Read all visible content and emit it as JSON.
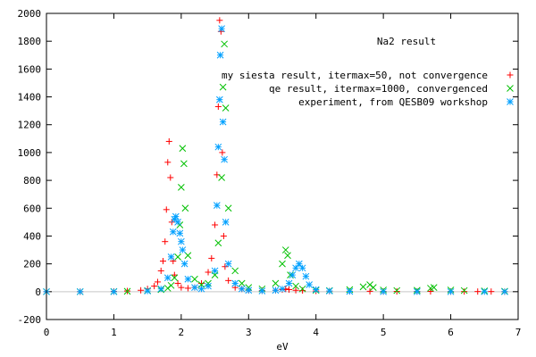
{
  "chart_data": {
    "type": "scatter",
    "title": "Na2 result",
    "xlabel": "eV",
    "ylabel": "",
    "xlim": [
      0,
      7
    ],
    "ylim": [
      -200,
      2000
    ],
    "grid": false,
    "legend_position": "top-right",
    "x_ticks": [
      "0",
      "1",
      "2",
      "3",
      "4",
      "5",
      "6",
      "7"
    ],
    "y_ticks": [
      "-200",
      "0",
      "200",
      "400",
      "600",
      "800",
      "1000",
      "1200",
      "1400",
      "1600",
      "1800",
      "2000"
    ],
    "series": [
      {
        "name": "my siesta result, itermax=50, not convergence",
        "marker": "plus",
        "color": "#ff0000",
        "x": [
          0.0,
          0.5,
          1.0,
          1.2,
          1.4,
          1.5,
          1.6,
          1.65,
          1.7,
          1.73,
          1.76,
          1.78,
          1.8,
          1.82,
          1.84,
          1.86,
          1.88,
          1.9,
          1.95,
          2.0,
          2.1,
          2.2,
          2.3,
          2.4,
          2.45,
          2.5,
          2.53,
          2.55,
          2.57,
          2.59,
          2.61,
          2.63,
          2.65,
          2.7,
          2.8,
          2.9,
          3.0,
          3.2,
          3.4,
          3.5,
          3.55,
          3.6,
          3.7,
          3.8,
          4.0,
          4.2,
          4.5,
          4.8,
          5.0,
          5.2,
          5.5,
          5.7,
          6.0,
          6.2,
          6.4,
          6.6,
          6.8
        ],
        "y": [
          0,
          0,
          2,
          5,
          10,
          20,
          40,
          70,
          150,
          220,
          360,
          590,
          930,
          1080,
          820,
          500,
          220,
          120,
          60,
          30,
          25,
          30,
          60,
          140,
          240,
          480,
          840,
          1330,
          1950,
          1870,
          1000,
          400,
          180,
          80,
          30,
          20,
          10,
          8,
          10,
          15,
          20,
          15,
          10,
          8,
          5,
          4,
          3,
          3,
          2,
          2,
          2,
          2,
          1,
          1,
          1,
          1,
          0
        ]
      },
      {
        "name": "qe result, itermax=1000, convergenced",
        "marker": "cross",
        "color": "#00c000",
        "x": [
          0.0,
          0.5,
          1.0,
          1.2,
          1.5,
          1.7,
          1.8,
          1.85,
          1.9,
          1.95,
          1.98,
          2.0,
          2.02,
          2.04,
          2.06,
          2.1,
          2.2,
          2.3,
          2.4,
          2.5,
          2.55,
          2.6,
          2.62,
          2.64,
          2.66,
          2.7,
          2.8,
          2.9,
          3.0,
          3.2,
          3.4,
          3.5,
          3.55,
          3.58,
          3.62,
          3.7,
          3.8,
          4.0,
          4.2,
          4.5,
          4.7,
          4.8,
          4.85,
          5.0,
          5.2,
          5.5,
          5.7,
          5.75,
          6.0,
          6.2,
          6.5,
          6.8
        ],
        "y": [
          0,
          0,
          1,
          3,
          8,
          15,
          25,
          45,
          100,
          250,
          480,
          750,
          1030,
          920,
          600,
          260,
          90,
          50,
          60,
          120,
          350,
          820,
          1470,
          1780,
          1320,
          600,
          150,
          60,
          30,
          20,
          60,
          200,
          300,
          260,
          120,
          40,
          20,
          10,
          8,
          15,
          35,
          50,
          30,
          12,
          8,
          10,
          25,
          30,
          12,
          8,
          5,
          3
        ]
      },
      {
        "name": "experiment, from QESB09 workshop",
        "marker": "star",
        "color": "#00a0ff",
        "x": [
          0.0,
          0.5,
          1.0,
          1.5,
          1.7,
          1.8,
          1.85,
          1.88,
          1.9,
          1.92,
          1.95,
          1.98,
          2.0,
          2.02,
          2.05,
          2.1,
          2.2,
          2.3,
          2.4,
          2.5,
          2.53,
          2.55,
          2.57,
          2.58,
          2.6,
          2.62,
          2.64,
          2.66,
          2.7,
          2.8,
          2.9,
          3.0,
          3.2,
          3.4,
          3.5,
          3.6,
          3.65,
          3.7,
          3.75,
          3.8,
          3.85,
          3.9,
          4.0,
          4.2,
          4.5,
          5.0,
          5.5,
          6.0,
          6.5,
          6.8
        ],
        "y": [
          0,
          0,
          0,
          5,
          20,
          100,
          250,
          430,
          520,
          540,
          500,
          420,
          360,
          300,
          200,
          90,
          30,
          20,
          40,
          150,
          620,
          1040,
          1380,
          1700,
          1890,
          1220,
          950,
          500,
          200,
          60,
          20,
          10,
          5,
          10,
          20,
          60,
          120,
          170,
          200,
          170,
          110,
          50,
          15,
          5,
          2,
          0,
          0,
          0,
          0,
          0
        ]
      }
    ]
  }
}
